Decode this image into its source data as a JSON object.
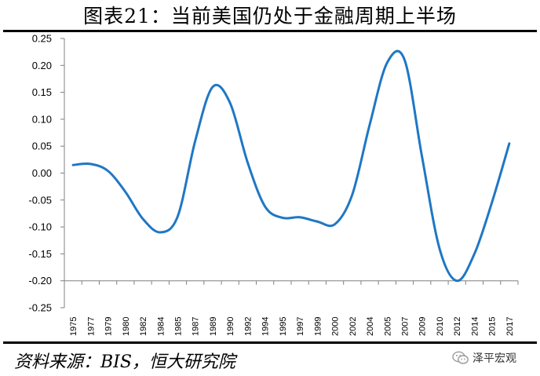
{
  "header": {
    "title": "图表21：当前美国仍处于金融周期上半场"
  },
  "footer": {
    "source": "资料来源：BIS，恒大研究院",
    "brand": "泽平宏观"
  },
  "icons": {
    "brand_icon": "wechat-icon"
  },
  "colors": {
    "line": "#1f77c4",
    "axis": "#808080",
    "text": "#000000"
  },
  "chart_data": {
    "type": "line",
    "title": "图表21：当前美国仍处于金融周期上半场",
    "xlabel": "",
    "ylabel": "",
    "categories": [
      "1975",
      "1977",
      "1979",
      "1980",
      "1982",
      "1984",
      "1985",
      "1987",
      "1989",
      "1990",
      "1992",
      "1994",
      "1995",
      "1997",
      "1999",
      "2000",
      "2002",
      "2004",
      "2005",
      "2007",
      "2009",
      "2010",
      "2012",
      "2014",
      "2015",
      "2017"
    ],
    "ylim": [
      -0.25,
      0.25
    ],
    "yticks": [
      "0.25",
      "0.20",
      "0.15",
      "0.10",
      "0.05",
      "0.00",
      "-0.05",
      "-0.10",
      "-0.15",
      "-0.20",
      "-0.25"
    ],
    "grid": false,
    "legend": "none",
    "series": [
      {
        "values": [
          0.015,
          0.017,
          0.004,
          -0.035,
          -0.085,
          -0.11,
          -0.08,
          0.06,
          0.16,
          0.13,
          0.02,
          -0.062,
          -0.083,
          -0.082,
          -0.09,
          -0.095,
          -0.04,
          0.09,
          0.205,
          0.21,
          0.03,
          -0.14,
          -0.2,
          -0.15,
          -0.055,
          0.055
        ]
      }
    ]
  }
}
